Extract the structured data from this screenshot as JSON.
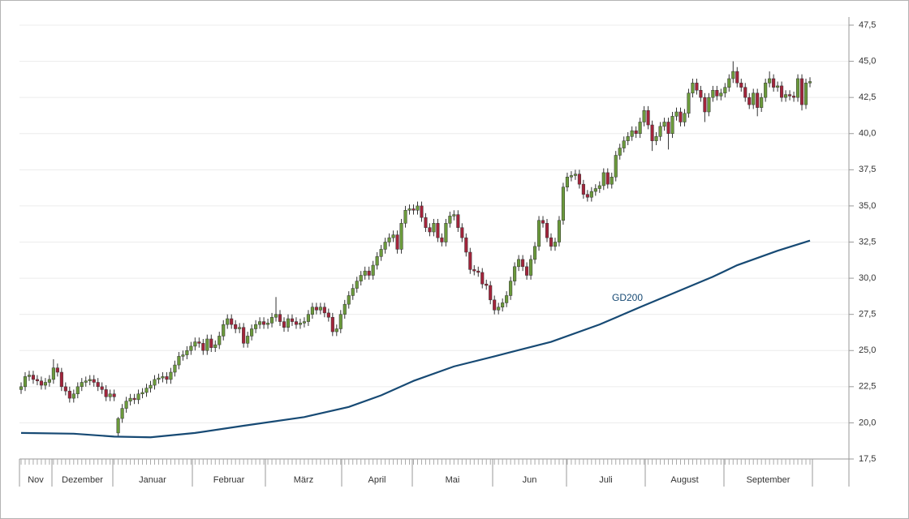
{
  "chart_data": {
    "type": "candlestick",
    "up_color": "#6b9a3b",
    "down_color": "#a3243b",
    "grid": true,
    "ylim": [
      17.5,
      47.5
    ],
    "yticks": [
      {
        "value": 17.5,
        "label": "17,5"
      },
      {
        "value": 20,
        "label": "20,0"
      },
      {
        "value": 22.5,
        "label": "22,5"
      },
      {
        "value": 25,
        "label": "25,0"
      },
      {
        "value": 27.5,
        "label": "27,5"
      },
      {
        "value": 30,
        "label": "30,0"
      },
      {
        "value": 32.5,
        "label": "32,5"
      },
      {
        "value": 35,
        "label": "35,0"
      },
      {
        "value": 37.5,
        "label": "37,5"
      },
      {
        "value": 40,
        "label": "40,0"
      },
      {
        "value": 42.5,
        "label": "42,5"
      },
      {
        "value": 45,
        "label": "45,0"
      },
      {
        "value": 47.5,
        "label": "47,5"
      }
    ],
    "months": [
      "Nov",
      "Dezember",
      "Januar",
      "Februar",
      "März",
      "April",
      "Mai",
      "Jun",
      "Juli",
      "August",
      "September"
    ],
    "open": [
      22.3,
      22.5,
      23.2,
      23.3,
      23.0,
      22.9,
      22.6,
      22.8,
      23.0,
      23.8,
      23.5,
      22.5,
      22.2,
      21.7,
      22.0,
      22.5,
      22.8,
      22.9,
      23.0,
      22.8,
      22.5,
      22.3,
      21.8,
      22.0,
      19.3,
      20.3,
      21.0,
      21.5,
      21.7,
      21.6,
      22.0,
      22.1,
      22.4,
      22.6,
      23.0,
      23.1,
      23.2,
      23.0,
      23.5,
      24.0,
      24.6,
      24.7,
      25.0,
      25.3,
      25.6,
      25.5,
      25.0,
      25.8,
      25.2,
      25.4,
      26.0,
      26.8,
      27.2,
      26.8,
      26.5,
      26.6,
      25.5,
      26.0,
      26.5,
      26.8,
      27.0,
      26.8,
      26.9,
      27.3,
      27.5,
      27.0,
      26.6,
      27.2,
      27.0,
      26.8,
      26.9,
      27.0,
      27.5,
      28.0,
      27.8,
      28.0,
      27.6,
      27.3,
      26.3,
      26.5,
      27.5,
      28.2,
      28.8,
      29.3,
      29.8,
      30.2,
      30.5,
      30.2,
      30.9,
      31.5,
      32.0,
      32.5,
      32.8,
      33.0,
      32.0,
      33.8,
      34.7,
      34.8,
      34.7,
      35.0,
      34.2,
      33.5,
      33.2,
      33.8,
      32.8,
      32.5,
      33.8,
      34.3,
      34.4,
      33.5,
      32.8,
      31.8,
      30.6,
      30.5,
      30.4,
      29.6,
      29.5,
      28.5,
      27.8,
      28.0,
      28.3,
      28.8,
      29.8,
      30.8,
      31.3,
      30.8,
      30.2,
      31.3,
      32.2,
      34.0,
      33.8,
      32.8,
      32.2,
      32.5,
      34.0,
      36.3,
      37.0,
      37.1,
      37.2,
      36.5,
      35.8,
      35.6,
      36.0,
      36.2,
      36.4,
      37.3,
      36.5,
      37.0,
      38.5,
      39.0,
      39.5,
      39.8,
      40.2,
      40.0,
      40.8,
      41.6,
      40.6,
      39.5,
      39.8,
      40.5,
      40.8,
      40.0,
      41.2,
      41.5,
      40.8,
      41.4,
      42.8,
      43.5,
      43.0,
      42.5,
      41.5,
      42.5,
      43.0,
      42.6,
      42.8,
      43.2,
      43.8,
      44.3,
      43.5,
      43.2,
      42.5,
      42.0,
      42.8,
      41.8,
      42.5,
      43.5,
      43.8,
      43.2,
      43.3,
      42.5,
      42.7,
      42.6,
      42.5,
      43.8,
      42.0,
      43.5
    ],
    "high": [
      22.8,
      23.5,
      23.6,
      23.6,
      23.3,
      23.2,
      23.1,
      23.3,
      24.4,
      24.1,
      23.8,
      22.8,
      22.5,
      22.3,
      22.8,
      23.1,
      23.2,
      23.3,
      23.3,
      23.1,
      22.8,
      22.6,
      22.3,
      22.3,
      20.4,
      21.3,
      21.8,
      22.0,
      22.0,
      22.3,
      22.4,
      22.7,
      22.9,
      23.3,
      23.4,
      23.5,
      23.5,
      23.8,
      24.3,
      24.9,
      25.0,
      25.3,
      25.6,
      25.9,
      25.9,
      25.8,
      26.1,
      26.1,
      25.7,
      26.3,
      27.1,
      27.5,
      27.5,
      27.1,
      26.9,
      26.9,
      26.3,
      26.8,
      27.1,
      27.3,
      27.3,
      27.2,
      27.6,
      28.7,
      27.8,
      27.3,
      27.5,
      27.5,
      27.3,
      27.2,
      27.3,
      27.8,
      28.3,
      28.3,
      28.3,
      28.3,
      27.9,
      27.6,
      26.8,
      27.8,
      28.5,
      29.1,
      29.6,
      30.1,
      30.5,
      30.8,
      30.8,
      31.2,
      31.8,
      32.3,
      32.8,
      33.1,
      33.3,
      33.3,
      34.1,
      35.0,
      35.1,
      35.1,
      35.3,
      35.3,
      34.5,
      33.8,
      34.1,
      34.1,
      33.1,
      34.1,
      34.6,
      34.7,
      34.7,
      33.8,
      33.1,
      32.1,
      30.9,
      30.8,
      30.7,
      29.9,
      29.8,
      28.8,
      28.3,
      28.6,
      29.1,
      30.1,
      31.1,
      31.6,
      31.6,
      31.1,
      31.6,
      32.5,
      34.3,
      34.3,
      34.1,
      33.1,
      32.8,
      34.3,
      36.6,
      37.3,
      37.4,
      37.5,
      37.5,
      36.8,
      36.1,
      36.3,
      36.5,
      36.7,
      37.6,
      37.6,
      37.3,
      38.8,
      39.3,
      39.8,
      40.1,
      40.5,
      40.5,
      41.1,
      41.9,
      41.9,
      40.9,
      40.1,
      40.8,
      41.1,
      41.1,
      41.5,
      41.8,
      41.8,
      41.7,
      43.1,
      43.8,
      43.8,
      43.3,
      42.8,
      42.8,
      43.3,
      43.3,
      43.1,
      43.5,
      44.1,
      45.0,
      44.6,
      43.8,
      43.5,
      42.8,
      43.1,
      43.1,
      42.8,
      43.8,
      44.3,
      44.1,
      43.6,
      43.6,
      43.0,
      43.0,
      42.9,
      44.1,
      44.1,
      43.8,
      43.9
    ],
    "low": [
      22.0,
      22.2,
      22.9,
      22.7,
      22.6,
      22.3,
      22.3,
      22.5,
      22.7,
      23.2,
      22.2,
      21.9,
      21.4,
      21.4,
      21.7,
      22.2,
      22.5,
      22.6,
      22.5,
      22.2,
      22.0,
      21.5,
      21.5,
      21.5,
      19.0,
      20.0,
      20.7,
      21.2,
      21.3,
      21.3,
      21.7,
      21.8,
      22.1,
      22.3,
      22.7,
      22.8,
      22.7,
      22.7,
      23.2,
      23.7,
      24.3,
      24.4,
      24.7,
      25.0,
      25.2,
      24.7,
      24.7,
      24.9,
      24.9,
      25.1,
      25.7,
      26.5,
      26.5,
      26.2,
      26.2,
      25.2,
      25.2,
      25.7,
      26.2,
      26.5,
      26.5,
      26.5,
      26.6,
      27.0,
      26.7,
      26.3,
      26.3,
      26.7,
      26.5,
      26.5,
      26.6,
      26.7,
      27.2,
      27.5,
      27.5,
      27.3,
      27.0,
      26.0,
      26.0,
      26.2,
      27.2,
      27.9,
      28.5,
      29.0,
      29.5,
      29.9,
      29.9,
      29.9,
      30.6,
      31.2,
      31.7,
      32.2,
      32.5,
      31.7,
      31.7,
      33.5,
      34.4,
      34.4,
      34.4,
      33.9,
      33.2,
      32.9,
      32.9,
      32.5,
      32.2,
      32.2,
      33.5,
      34.0,
      33.2,
      32.5,
      31.5,
      30.3,
      30.2,
      30.1,
      29.3,
      29.2,
      28.2,
      27.5,
      27.5,
      27.7,
      28.0,
      28.5,
      29.5,
      30.5,
      30.5,
      29.9,
      29.9,
      31.0,
      31.9,
      33.5,
      32.5,
      31.9,
      31.9,
      32.2,
      33.7,
      36.0,
      36.7,
      36.8,
      36.2,
      35.5,
      35.3,
      35.3,
      35.7,
      35.9,
      36.1,
      36.2,
      36.2,
      36.7,
      38.2,
      38.7,
      39.2,
      39.5,
      39.7,
      39.7,
      40.5,
      40.3,
      38.8,
      39.2,
      39.5,
      40.2,
      38.9,
      39.7,
      40.9,
      40.5,
      40.5,
      41.1,
      42.5,
      42.7,
      42.2,
      40.8,
      41.2,
      42.2,
      42.3,
      42.3,
      42.5,
      42.9,
      43.5,
      43.2,
      42.9,
      42.2,
      41.7,
      41.7,
      41.2,
      41.5,
      42.2,
      43.2,
      42.9,
      42.9,
      42.2,
      42.2,
      42.3,
      42.2,
      42.2,
      41.6,
      41.7,
      43.2
    ],
    "close": [
      22.5,
      23.2,
      23.3,
      23.0,
      22.9,
      22.6,
      22.8,
      23.0,
      23.8,
      23.5,
      22.5,
      22.2,
      21.7,
      22.0,
      22.5,
      22.8,
      22.9,
      23.0,
      22.8,
      22.5,
      22.3,
      21.8,
      22.0,
      21.8,
      20.3,
      21.0,
      21.5,
      21.7,
      21.6,
      22.0,
      22.1,
      22.4,
      22.6,
      23.0,
      23.1,
      23.2,
      23.0,
      23.5,
      24.0,
      24.6,
      24.7,
      25.0,
      25.3,
      25.6,
      25.5,
      25.0,
      25.8,
      25.2,
      25.4,
      26.0,
      26.8,
      27.2,
      26.8,
      26.5,
      26.6,
      25.5,
      26.0,
      26.5,
      26.8,
      27.0,
      26.8,
      26.9,
      27.3,
      27.5,
      27.0,
      26.6,
      27.2,
      27.0,
      26.8,
      26.9,
      27.0,
      27.5,
      28.0,
      27.8,
      28.0,
      27.6,
      27.3,
      26.3,
      26.5,
      27.5,
      28.2,
      28.8,
      29.3,
      29.8,
      30.2,
      30.5,
      30.2,
      30.9,
      31.5,
      32.0,
      32.5,
      32.8,
      33.0,
      32.0,
      33.8,
      34.7,
      34.8,
      34.7,
      35.0,
      34.2,
      33.5,
      33.2,
      33.8,
      32.8,
      32.5,
      33.8,
      34.3,
      34.4,
      33.5,
      32.8,
      31.8,
      30.6,
      30.5,
      30.4,
      29.6,
      29.5,
      28.5,
      27.8,
      28.0,
      28.3,
      28.8,
      29.8,
      30.8,
      31.3,
      30.8,
      30.2,
      31.3,
      32.2,
      34.0,
      33.8,
      32.8,
      32.2,
      32.5,
      34.0,
      36.3,
      37.0,
      37.1,
      37.2,
      36.5,
      35.8,
      35.6,
      36.0,
      36.2,
      36.4,
      37.3,
      36.5,
      37.0,
      38.5,
      39.0,
      39.5,
      39.8,
      40.2,
      40.0,
      40.8,
      41.6,
      40.6,
      39.5,
      39.8,
      40.5,
      40.8,
      40.0,
      41.2,
      41.5,
      40.8,
      41.4,
      42.8,
      43.5,
      43.0,
      42.5,
      41.5,
      42.5,
      43.0,
      42.6,
      42.8,
      43.2,
      43.8,
      44.3,
      43.5,
      43.2,
      42.5,
      42.0,
      42.8,
      41.8,
      42.5,
      43.5,
      43.8,
      43.2,
      43.3,
      42.5,
      42.7,
      42.6,
      42.5,
      43.8,
      42.0,
      43.5,
      43.6
    ],
    "series": [
      {
        "name": "GD200",
        "color": "#174a74",
        "x": [
          0,
          13,
          23,
          32,
          43,
          55,
          70,
          81,
          89,
          97,
          107,
          117,
          131,
          143,
          153,
          165,
          171,
          177,
          187,
          195
        ],
        "values": [
          19.3,
          19.25,
          19.05,
          19.0,
          19.3,
          19.8,
          20.4,
          21.1,
          21.9,
          22.9,
          23.9,
          24.6,
          25.6,
          26.8,
          28.0,
          29.4,
          30.1,
          30.9,
          31.9,
          32.6
        ]
      }
    ]
  }
}
